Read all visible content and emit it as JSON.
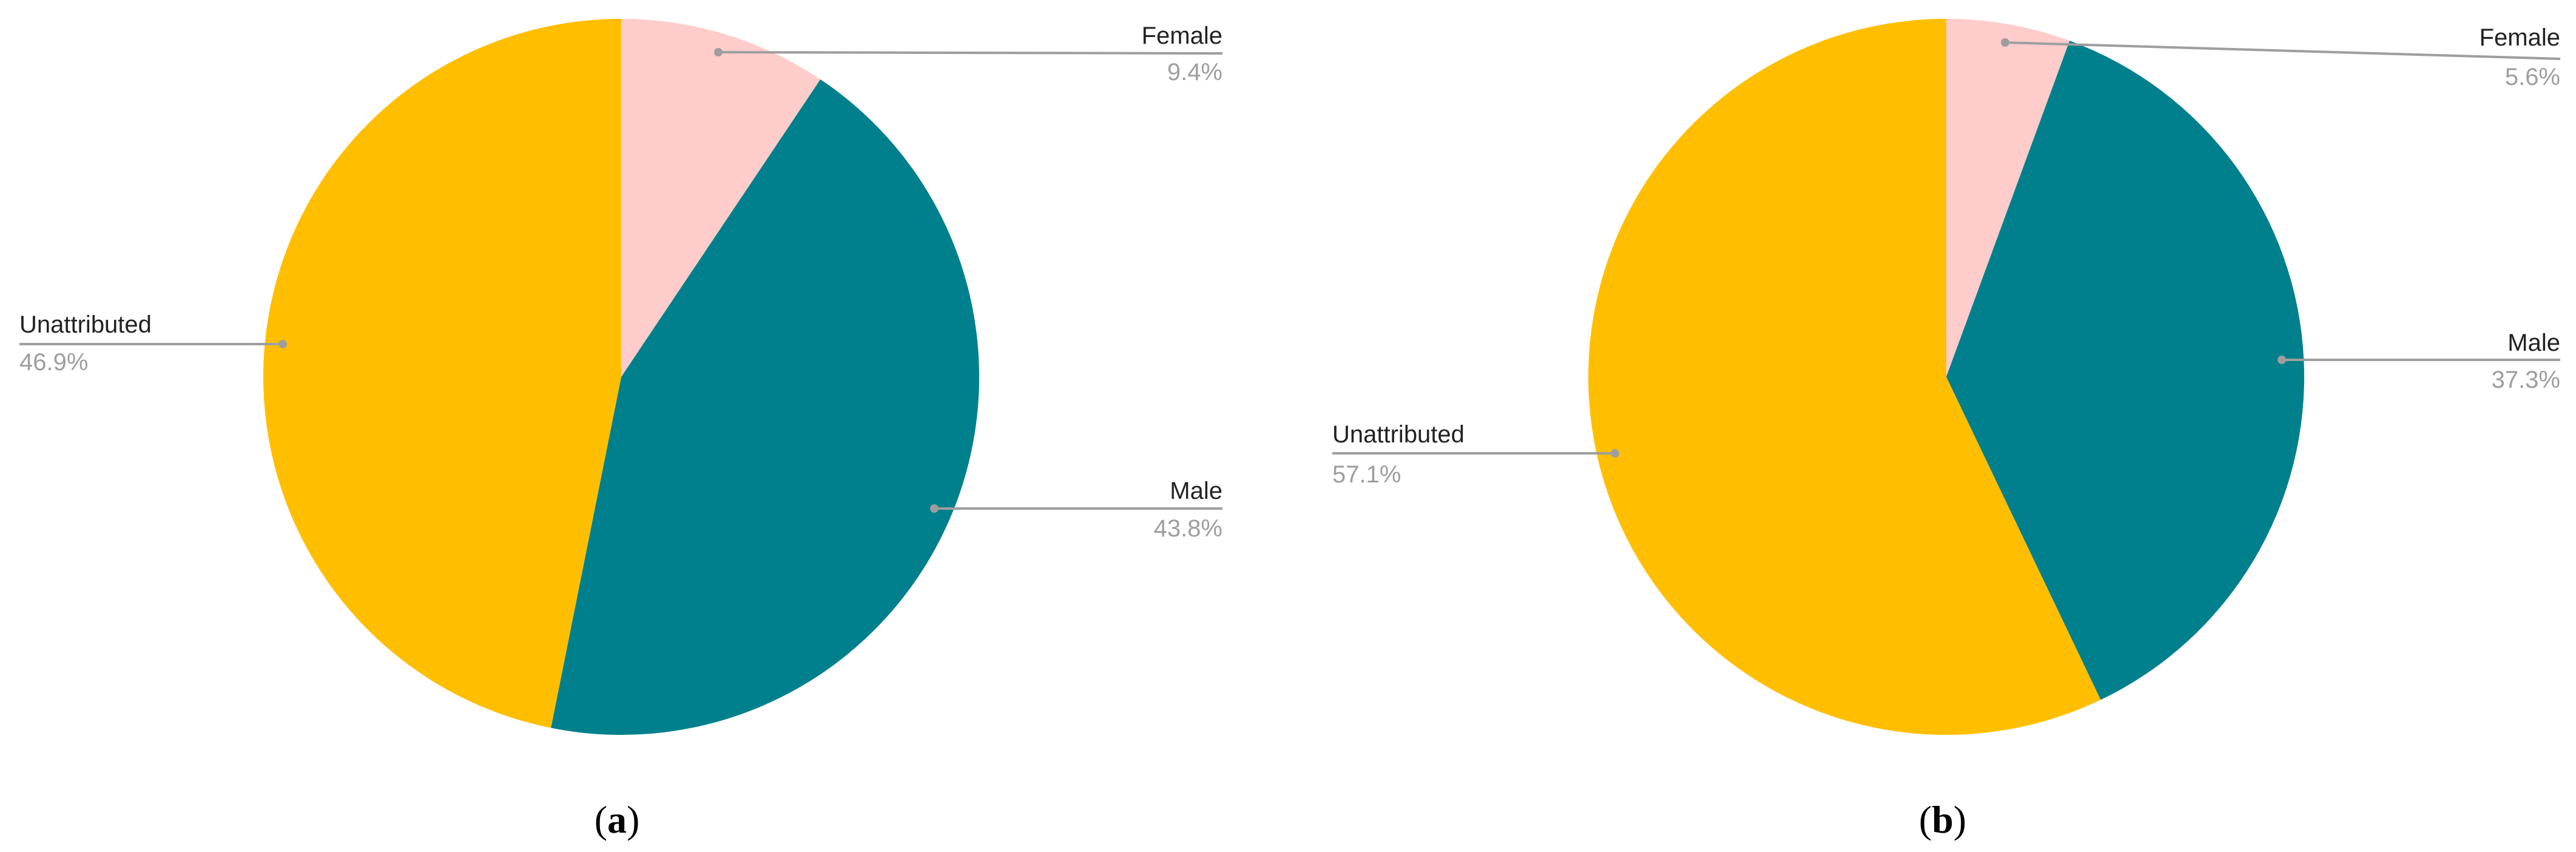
{
  "chart_data": [
    {
      "type": "pie",
      "panel_label": "a",
      "start_angle_deg": 0,
      "direction": "clockwise",
      "slices": [
        {
          "label": "Female",
          "value": 9.4,
          "value_label": "9.4%",
          "color": "#FFCCCC"
        },
        {
          "label": "Male",
          "value": 43.8,
          "value_label": "43.8%",
          "color": "#00808C"
        },
        {
          "label": "Unattributed",
          "value": 46.9,
          "value_label": "46.9%",
          "color": "#FFBF00"
        }
      ]
    },
    {
      "type": "pie",
      "panel_label": "b",
      "start_angle_deg": 0,
      "direction": "clockwise",
      "slices": [
        {
          "label": "Female",
          "value": 5.6,
          "value_label": "5.6%",
          "color": "#FFCCCC"
        },
        {
          "label": "Male",
          "value": 37.3,
          "value_label": "37.3%",
          "color": "#00808C"
        },
        {
          "label": "Unattributed",
          "value": 57.1,
          "value_label": "57.1%",
          "color": "#FFBF00"
        }
      ]
    }
  ],
  "colors": {
    "leader_line": "#9e9e9e",
    "caption_text": "#000000"
  }
}
